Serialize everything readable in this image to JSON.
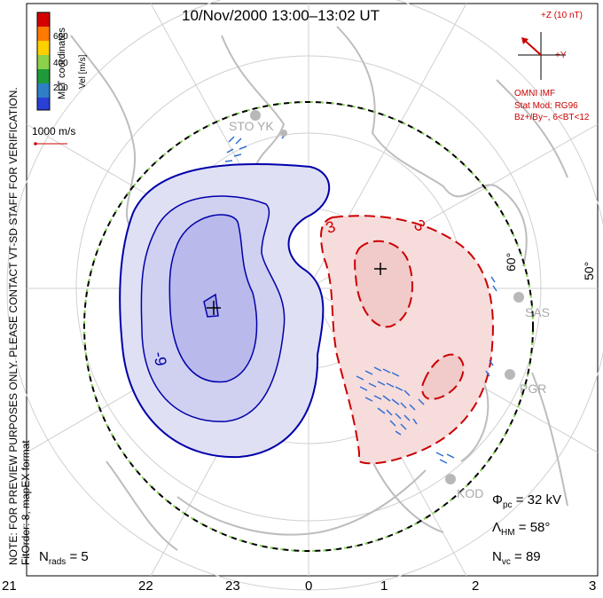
{
  "title": "10/Nov/2000 13:00–13:02 UT",
  "colorbar": {
    "label": "Vel [m/s]",
    "ticks": [
      "600",
      "400",
      "200"
    ],
    "colors": [
      "#d40000",
      "#ff7a00",
      "#ffd000",
      "#8cd24a",
      "#1f9a3a",
      "#2f7fc6",
      "#2a3fd6"
    ]
  },
  "coordinates_label": "MLT coordinates",
  "scale_vector": "1000 m/s",
  "imf": {
    "z_label": "+Z (10 nT)",
    "y_label": "+Y",
    "model_lines": [
      "OMNI IMF",
      "Stat Mod: RG96",
      "Bz+/By−, 6<BT<12"
    ]
  },
  "note_lines": [
    "NOTE: FOR PREVIEW PURPOSES ONLY. PLEASE CONTACT VT-SD STAFF FOR VERIFICATION.",
    "FitOrder: 8, mapEX format"
  ],
  "latitude_labels": [
    "60°",
    "50°"
  ],
  "radar_sites": [
    "STO",
    "YK",
    "SAS",
    "PGR",
    "KOD"
  ],
  "contour_labels": [
    "-9",
    "3",
    "3"
  ],
  "stats": {
    "phi_symbol": "Φ",
    "phi_sub": "pc",
    "phi_value": "= 32 kV",
    "lambda_symbol": "Λ",
    "lambda_sub": "HM",
    "lambda_value": "= 58°",
    "nvc_symbol": "N",
    "nvc_sub": "vc",
    "nvc_value": "= 89",
    "nrads_symbol": "N",
    "nrads_sub": "rads",
    "nrads_value": "= 5"
  },
  "mlt_hours": [
    "21",
    "22",
    "23",
    "0",
    "1",
    "2",
    "3"
  ],
  "colors": {
    "negative_cell_fill": "#c8c8f0",
    "negative_contour": "#0000aa",
    "positive_cell_fill": "#f4caca",
    "positive_contour": "#cc0000",
    "hmb": "#7fd24a",
    "grid": "#c8c8c8",
    "coast": "#c0c0c0"
  }
}
